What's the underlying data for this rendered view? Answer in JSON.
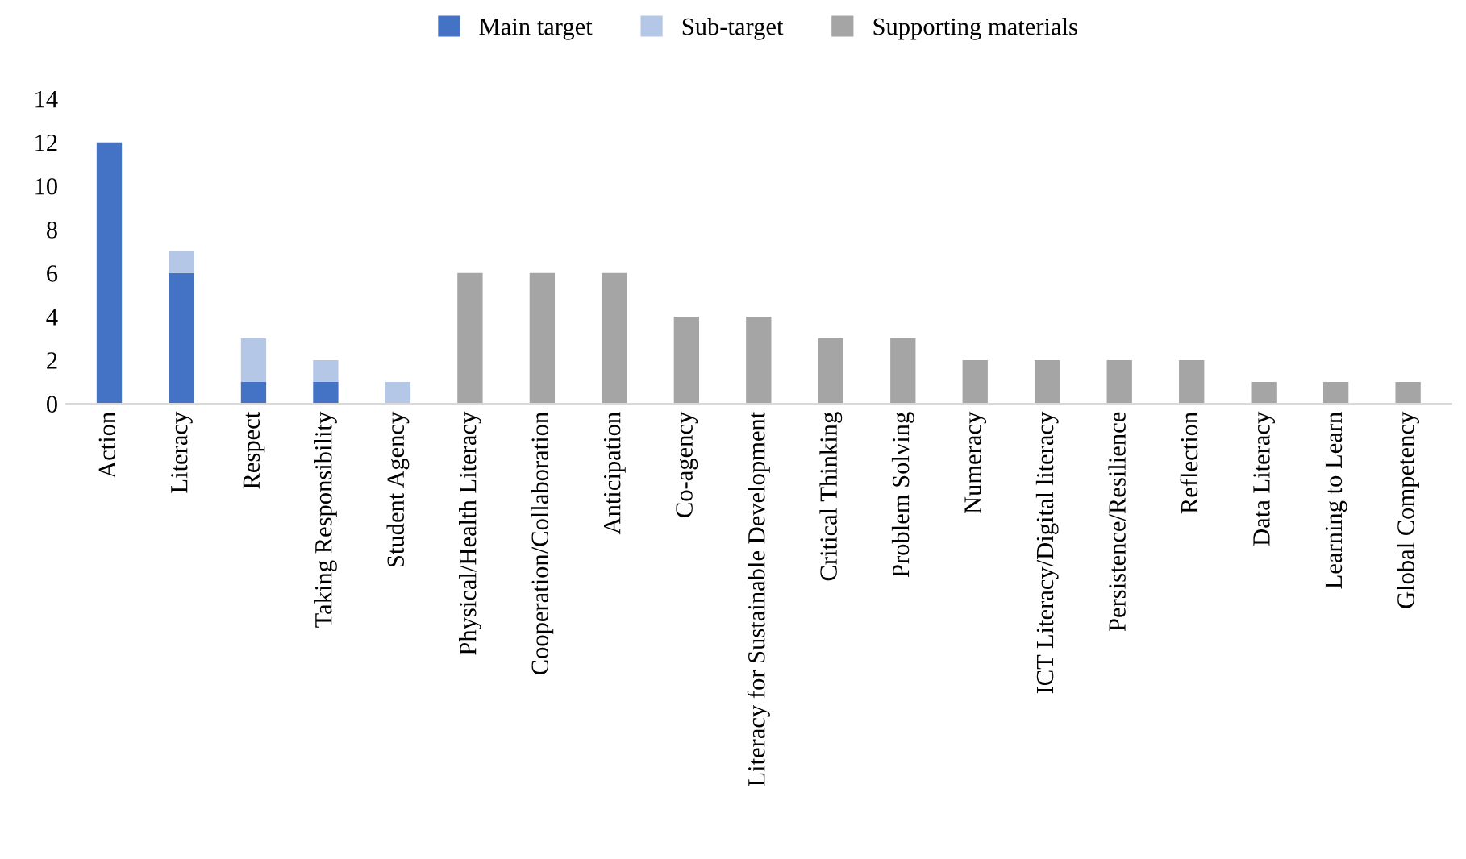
{
  "chart_data": {
    "type": "bar",
    "stacked": true,
    "categories": [
      "Action",
      "Literacy",
      "Respect",
      "Taking Responsibility",
      "Student Agency",
      "Physical/Health Literacy",
      "Cooperation/Collaboration",
      "Anticipation",
      "Co-agency",
      "Literacy for Sustainable Development",
      "Critical Thinking",
      "Problem Solving",
      "Numeracy",
      "ICT Literacy/Digital literacy",
      "Persistence/Resilience",
      "Reflection",
      "Data Literacy",
      "Learning to Learn",
      "Global Competency"
    ],
    "series": [
      {
        "name": "Main target",
        "color": "#4472c4",
        "values": [
          12,
          6,
          1,
          1,
          null,
          null,
          null,
          null,
          null,
          null,
          null,
          null,
          null,
          null,
          null,
          null,
          null,
          null,
          null
        ]
      },
      {
        "name": "Sub-target",
        "color": "#b4c7e7",
        "values": [
          null,
          1,
          2,
          1,
          1,
          null,
          null,
          null,
          null,
          null,
          null,
          null,
          null,
          null,
          null,
          null,
          null,
          null,
          null
        ]
      },
      {
        "name": "Supporting materials",
        "color": "#a5a5a5",
        "values": [
          null,
          null,
          null,
          null,
          null,
          6,
          6,
          6,
          4,
          4,
          3,
          3,
          2,
          2,
          2,
          2,
          1,
          1,
          1
        ]
      }
    ],
    "ylim": [
      0,
      14
    ],
    "yticks": [
      0,
      2,
      4,
      6,
      8,
      10,
      12,
      14
    ],
    "grid": false,
    "legend": "top"
  }
}
